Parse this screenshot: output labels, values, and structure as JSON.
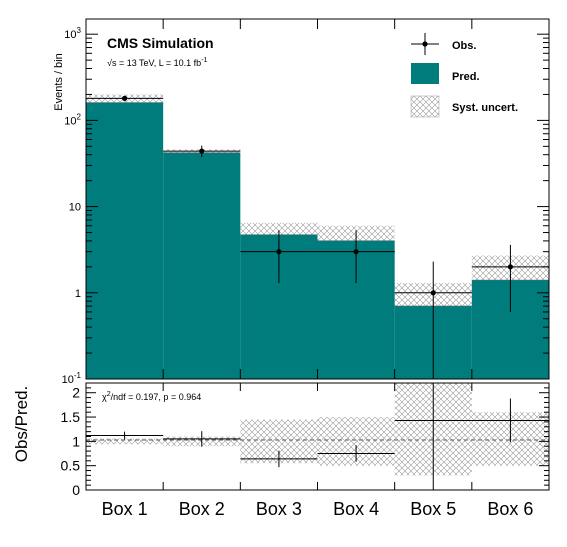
{
  "chart_data": {
    "type": "bar",
    "categories": [
      "Box 1",
      "Box 2",
      "Box 3",
      "Box 4",
      "Box 5",
      "Box 6"
    ],
    "title": "CMS Simulation",
    "subtitle_prefix": "√s = 13 TeV, L = 10.1 fb",
    "subtitle_exp": "-1",
    "ylabel": "Events / bin",
    "ratio_ylabel": "Obs/Pred.",
    "yscale": "log",
    "ylim": [
      0.1,
      1500
    ],
    "yticks": [
      {
        "base": "10",
        "exp": "-1",
        "value": 0.1
      },
      {
        "base": "1",
        "exp": "",
        "value": 1
      },
      {
        "base": "10",
        "exp": "",
        "value": 10
      },
      {
        "base": "10",
        "exp": "2",
        "value": 100
      },
      {
        "base": "10",
        "exp": "3",
        "value": 1000
      }
    ],
    "prediction": [
      160,
      42,
      4.7,
      4.0,
      0.7,
      1.4
    ],
    "syst_band": [
      [
        150,
        200
      ],
      [
        38,
        46
      ],
      [
        3.0,
        6.5
      ],
      [
        2.6,
        6.0
      ],
      [
        0.5,
        1.3
      ],
      [
        1.0,
        2.7
      ]
    ],
    "observed": [
      {
        "value": 180,
        "err_low": 13,
        "err_high": 13
      },
      {
        "value": 44,
        "err_low": 6.5,
        "err_high": 7
      },
      {
        "value": 3,
        "err_low": 1.7,
        "err_high": 2.3
      },
      {
        "value": 3,
        "err_low": 1.7,
        "err_high": 2.3
      },
      {
        "value": 1,
        "err_low": 0.9,
        "err_high": 1.3
      },
      {
        "value": 2,
        "err_low": 1.4,
        "err_high": 1.6
      }
    ],
    "legend": [
      "Obs.",
      "Pred.",
      "Syst. uncert."
    ],
    "legend_placement": "top-right",
    "ratio": {
      "ylim": [
        0,
        2.2
      ],
      "yticks": [
        "0",
        "0.5",
        "1",
        "1.5",
        "2"
      ],
      "annotation_prefix": "χ",
      "annotation_exp": "2",
      "annotation_suffix": "/ndf = 0.197, p = 0.964",
      "values": [
        1.12,
        1.05,
        0.64,
        0.75,
        1.43,
        1.43
      ],
      "err_low": [
        0.08,
        0.16,
        0.17,
        0.17,
        1.43,
        0.45
      ],
      "err_high": [
        0.08,
        0.16,
        0.17,
        0.17,
        1.3,
        0.45
      ],
      "syst_band": [
        [
          0.94,
          1.06
        ],
        [
          0.9,
          1.1
        ],
        [
          0.55,
          1.45
        ],
        [
          0.5,
          1.5
        ],
        [
          0.3,
          2.2
        ],
        [
          0.5,
          1.6
        ]
      ]
    },
    "colors": {
      "prediction": "#007c7c",
      "observed": "#000000",
      "hatch": "#9a9a9a"
    }
  }
}
